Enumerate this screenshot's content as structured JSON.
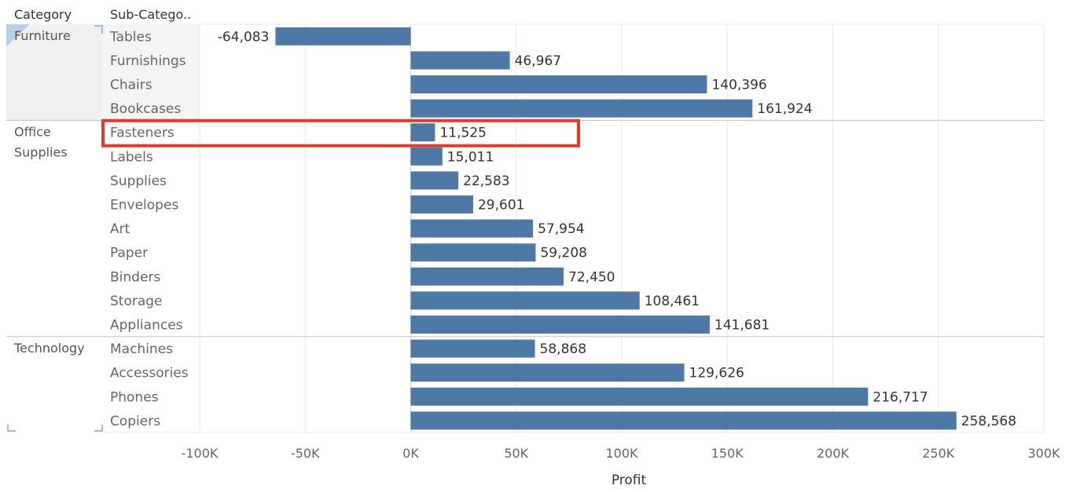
{
  "header": {
    "category_label": "Category",
    "subcategory_label": "Sub-Catego.."
  },
  "colors": {
    "bar": "#4e79a7",
    "highlight": "#e03a2e",
    "grid": "#e9e9e9",
    "divider": "#c8c8c8"
  },
  "chart_data": {
    "type": "bar",
    "orientation": "horizontal",
    "xlabel": "Profit",
    "xlim": [
      -100000,
      300000
    ],
    "xticks": [
      -100000,
      -50000,
      0,
      50000,
      100000,
      150000,
      200000,
      250000,
      300000
    ],
    "xtick_labels": [
      "-100K",
      "-50K",
      "0K",
      "50K",
      "100K",
      "150K",
      "200K",
      "250K",
      "300K"
    ],
    "groups": [
      {
        "category": "Furniture",
        "items": [
          {
            "name": "Tables",
            "value": -64083,
            "label": "-64,083"
          },
          {
            "name": "Furnishings",
            "value": 46967,
            "label": "46,967"
          },
          {
            "name": "Chairs",
            "value": 140396,
            "label": "140,396"
          },
          {
            "name": "Bookcases",
            "value": 161924,
            "label": "161,924"
          }
        ]
      },
      {
        "category": "Office Supplies",
        "items": [
          {
            "name": "Fasteners",
            "value": 11525,
            "label": "11,525",
            "highlighted": true
          },
          {
            "name": "Labels",
            "value": 15011,
            "label": "15,011"
          },
          {
            "name": "Supplies",
            "value": 22583,
            "label": "22,583"
          },
          {
            "name": "Envelopes",
            "value": 29601,
            "label": "29,601"
          },
          {
            "name": "Art",
            "value": 57954,
            "label": "57,954"
          },
          {
            "name": "Paper",
            "value": 59208,
            "label": "59,208"
          },
          {
            "name": "Binders",
            "value": 72450,
            "label": "72,450"
          },
          {
            "name": "Storage",
            "value": 108461,
            "label": "108,461"
          },
          {
            "name": "Appliances",
            "value": 141681,
            "label": "141,681"
          }
        ]
      },
      {
        "category": "Technology",
        "items": [
          {
            "name": "Machines",
            "value": 58868,
            "label": "58,868"
          },
          {
            "name": "Accessories",
            "value": 129626,
            "label": "129,626"
          },
          {
            "name": "Phones",
            "value": 216717,
            "label": "216,717"
          },
          {
            "name": "Copiers",
            "value": 258568,
            "label": "258,568"
          }
        ]
      }
    ]
  }
}
